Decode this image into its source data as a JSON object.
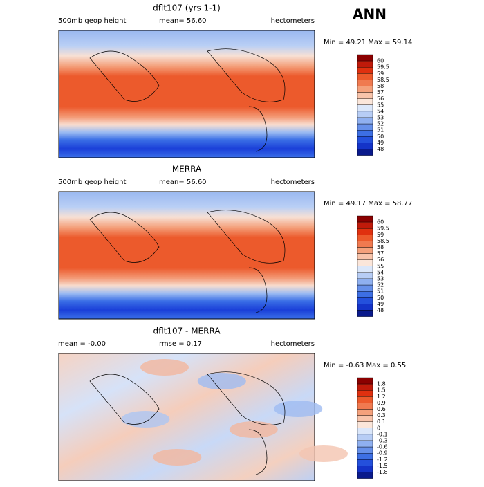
{
  "season": "ANN",
  "panels": [
    {
      "title": "dflt107 (yrs 1-1)",
      "left": "500mb geop height",
      "middle": "mean=  56.60",
      "units": "hectometers",
      "range": "Min =  49.21 Max =  59.14",
      "colorbar": [
        "60",
        "59.5",
        "59",
        "58.5",
        "58",
        "57",
        "56",
        "55",
        "54",
        "53",
        "52",
        "51",
        "50",
        "49",
        "48"
      ]
    },
    {
      "title": "MERRA",
      "left": "500mb geop height",
      "middle": "mean=  56.60",
      "units": "hectometers",
      "range": "Min =  49.17 Max =  58.77",
      "colorbar": [
        "60",
        "59.5",
        "59",
        "58.5",
        "58",
        "57",
        "56",
        "55",
        "54",
        "53",
        "52",
        "51",
        "50",
        "49",
        "48"
      ]
    },
    {
      "title": "dflt107 - MERRA",
      "left": "mean =  -0.00",
      "middle": "rmse =   0.17",
      "units": "hectometers",
      "range": "Min = -0.63 Max =   0.55",
      "colorbar": [
        "1.8",
        "1.5",
        "1.2",
        "0.9",
        "0.6",
        "0.3",
        "0.1",
        "0",
        "-0.1",
        "-0.3",
        "-0.6",
        "-0.9",
        "-1.2",
        "-1.5",
        "-1.8"
      ]
    }
  ]
}
